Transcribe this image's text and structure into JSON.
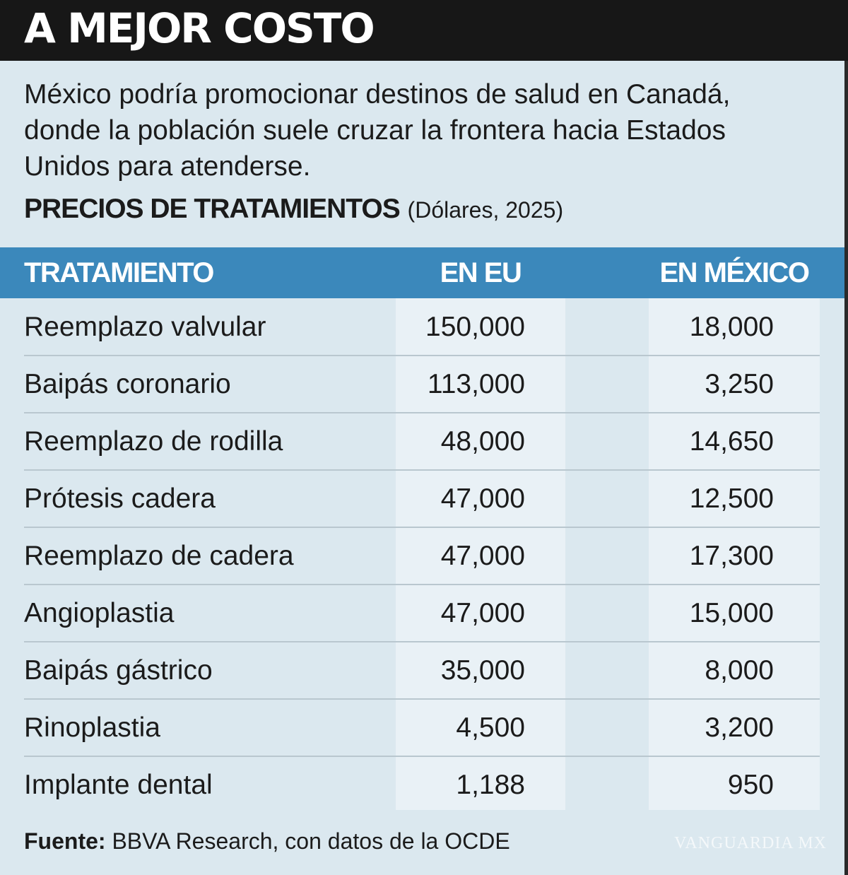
{
  "header": {
    "title": "A MEJOR COSTO"
  },
  "intro": "México podría promocionar destinos de salud en Canadá, donde la población suele cruzar la frontera hacia Estados Unidos para atenderse.",
  "subtitle": {
    "main": "PRECIOS DE TRATAMIENTOS",
    "note": "(Dólares, 2025)"
  },
  "table": {
    "columns": [
      "TRATAMIENTO",
      "EN EU",
      "EN MÉXICO"
    ],
    "rows": [
      [
        "Reemplazo valvular",
        "150,000",
        "18,000"
      ],
      [
        "Baipás coronario",
        "113,000",
        "3,250"
      ],
      [
        "Reemplazo de rodilla",
        "48,000",
        "14,650"
      ],
      [
        "Prótesis cadera",
        "47,000",
        "12,500"
      ],
      [
        "Reemplazo de cadera",
        "47,000",
        "17,300"
      ],
      [
        "Angioplastia",
        "47,000",
        "15,000"
      ],
      [
        "Baipás gástrico",
        "35,000",
        "8,000"
      ],
      [
        "Rinoplastia",
        "4,500",
        "3,200"
      ],
      [
        "Implante dental",
        "1,188",
        "950"
      ]
    ]
  },
  "source": {
    "label": "Fuente:",
    "text": "BBVA Research, con datos de la OCDE"
  },
  "watermark": "VANGUARDIA MX"
}
